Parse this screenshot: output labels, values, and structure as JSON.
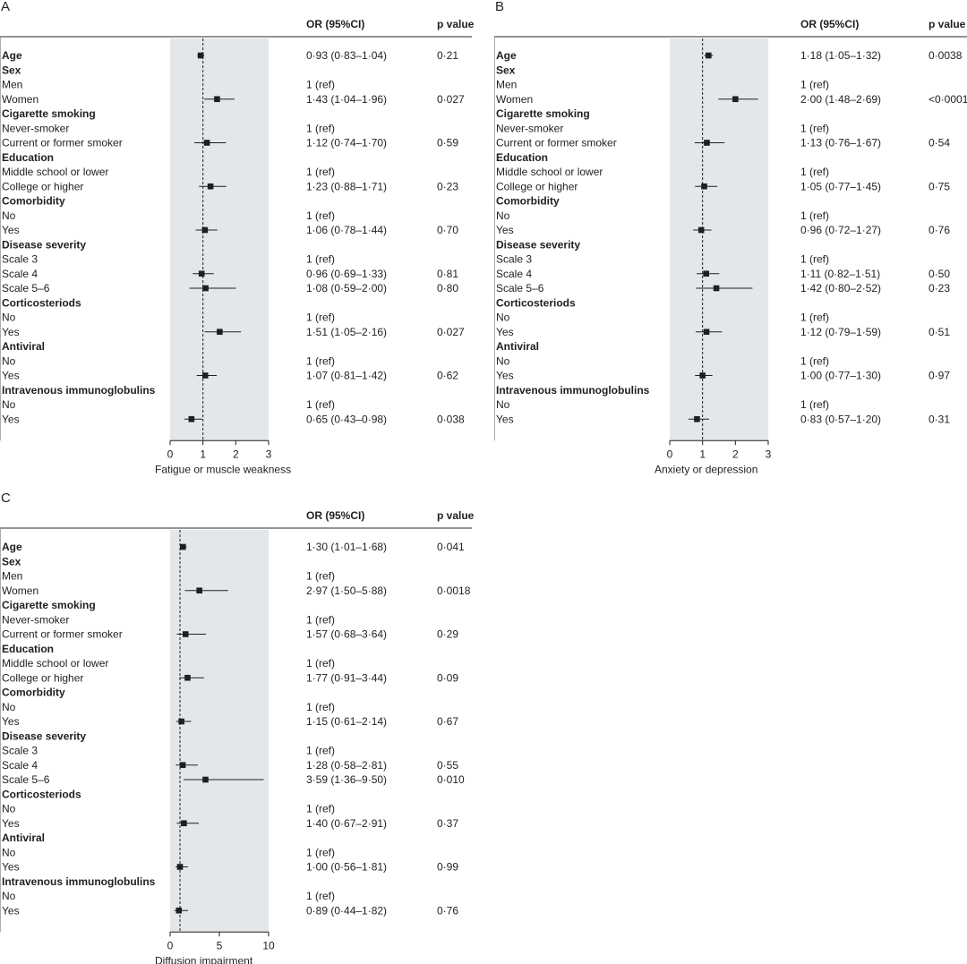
{
  "colors": {
    "shade": "#e4e7ea",
    "ink": "#1f1f1f",
    "line": "#555555"
  },
  "chart_data": [
    {
      "type": "forest",
      "panel": "A",
      "header_or": "OR (95%CI)",
      "header_p": "p value",
      "xlabel": "Fatigue or muscle weakness",
      "xlim": [
        0,
        3
      ],
      "xticks": [
        "0",
        "1",
        "2",
        "3"
      ],
      "reference": 1,
      "rows": [
        {
          "label": "Age",
          "bold": true,
          "or": 0.93,
          "lo": 0.83,
          "hi": 1.04,
          "ci": "0·93 (0·83–1·04)",
          "p": "0·21"
        },
        {
          "label": "Sex",
          "bold": true
        },
        {
          "label": "Men",
          "ci": "1 (ref)"
        },
        {
          "label": "Women",
          "or": 1.43,
          "lo": 1.04,
          "hi": 1.96,
          "ci": "1·43 (1·04–1·96)",
          "p": "0·027"
        },
        {
          "label": "Cigarette smoking",
          "bold": true
        },
        {
          "label": "Never-smoker",
          "ci": "1 (ref)"
        },
        {
          "label": "Current or former smoker",
          "or": 1.12,
          "lo": 0.74,
          "hi": 1.7,
          "ci": "1·12 (0·74–1·70)",
          "p": "0·59"
        },
        {
          "label": "Education",
          "bold": true
        },
        {
          "label": "Middle school or lower",
          "ci": "1 (ref)"
        },
        {
          "label": "College or higher",
          "or": 1.23,
          "lo": 0.88,
          "hi": 1.71,
          "ci": "1·23 (0·88–1·71)",
          "p": "0·23"
        },
        {
          "label": "Comorbidity",
          "bold": true
        },
        {
          "label": "No",
          "ci": "1 (ref)"
        },
        {
          "label": "Yes",
          "or": 1.06,
          "lo": 0.78,
          "hi": 1.44,
          "ci": "1·06 (0·78–1·44)",
          "p": "0·70"
        },
        {
          "label": "Disease severity",
          "bold": true
        },
        {
          "label": "Scale 3",
          "ci": "1 (ref)"
        },
        {
          "label": "Scale 4",
          "or": 0.96,
          "lo": 0.69,
          "hi": 1.33,
          "ci": "0·96 (0·69–1·33)",
          "p": "0·81"
        },
        {
          "label": "Scale 5–6",
          "or": 1.08,
          "lo": 0.59,
          "hi": 2.0,
          "ci": "1·08 (0·59–2·00)",
          "p": "0·80"
        },
        {
          "label": "Corticosteriods",
          "bold": true
        },
        {
          "label": "No",
          "ci": "1 (ref)"
        },
        {
          "label": "Yes",
          "or": 1.51,
          "lo": 1.05,
          "hi": 2.16,
          "ci": "1·51 (1·05–2·16)",
          "p": "0·027"
        },
        {
          "label": "Antiviral",
          "bold": true
        },
        {
          "label": "No",
          "ci": "1 (ref)"
        },
        {
          "label": "Yes",
          "or": 1.07,
          "lo": 0.81,
          "hi": 1.42,
          "ci": "1·07 (0·81–1·42)",
          "p": "0·62"
        },
        {
          "label": "Intravenous immunoglobulins",
          "bold": true
        },
        {
          "label": "No",
          "ci": "1 (ref)"
        },
        {
          "label": "Yes",
          "or": 0.65,
          "lo": 0.43,
          "hi": 0.98,
          "ci": "0·65 (0·43–0·98)",
          "p": "0·038"
        }
      ]
    },
    {
      "type": "forest",
      "panel": "B",
      "header_or": "OR (95%CI)",
      "header_p": "p value",
      "xlabel": "Anxiety or depression",
      "xlim": [
        0,
        3
      ],
      "xticks": [
        "0",
        "1",
        "2",
        "3"
      ],
      "reference": 1,
      "rows": [
        {
          "label": "Age",
          "bold": true,
          "or": 1.18,
          "lo": 1.05,
          "hi": 1.32,
          "ci": "1·18 (1·05–1·32)",
          "p": "0·0038"
        },
        {
          "label": "Sex",
          "bold": true
        },
        {
          "label": "Men",
          "ci": "1 (ref)"
        },
        {
          "label": "Women",
          "or": 2.0,
          "lo": 1.48,
          "hi": 2.69,
          "ci": "2·00 (1·48–2·69)",
          "p": "<0·0001"
        },
        {
          "label": "Cigarette smoking",
          "bold": true
        },
        {
          "label": "Never-smoker",
          "ci": "1 (ref)"
        },
        {
          "label": "Current or former smoker",
          "or": 1.13,
          "lo": 0.76,
          "hi": 1.67,
          "ci": "1·13 (0·76–1·67)",
          "p": "0·54"
        },
        {
          "label": "Education",
          "bold": true
        },
        {
          "label": "Middle school or lower",
          "ci": "1 (ref)"
        },
        {
          "label": "College or higher",
          "or": 1.05,
          "lo": 0.77,
          "hi": 1.45,
          "ci": "1·05 (0·77–1·45)",
          "p": "0·75"
        },
        {
          "label": "Comorbidity",
          "bold": true
        },
        {
          "label": "No",
          "ci": "1 (ref)"
        },
        {
          "label": "Yes",
          "or": 0.96,
          "lo": 0.72,
          "hi": 1.27,
          "ci": "0·96 (0·72–1·27)",
          "p": "0·76"
        },
        {
          "label": "Disease severity",
          "bold": true
        },
        {
          "label": "Scale 3",
          "ci": "1 (ref)"
        },
        {
          "label": "Scale 4",
          "or": 1.11,
          "lo": 0.82,
          "hi": 1.51,
          "ci": "1·11 (0·82–1·51)",
          "p": "0·50"
        },
        {
          "label": "Scale 5–6",
          "or": 1.42,
          "lo": 0.8,
          "hi": 2.52,
          "ci": "1·42 (0·80–2·52)",
          "p": "0·23"
        },
        {
          "label": "Corticosteriods",
          "bold": true
        },
        {
          "label": "No",
          "ci": "1 (ref)"
        },
        {
          "label": "Yes",
          "or": 1.12,
          "lo": 0.79,
          "hi": 1.59,
          "ci": "1·12 (0·79–1·59)",
          "p": "0·51"
        },
        {
          "label": "Antiviral",
          "bold": true
        },
        {
          "label": "No",
          "ci": "1 (ref)"
        },
        {
          "label": "Yes",
          "or": 1.0,
          "lo": 0.77,
          "hi": 1.3,
          "ci": "1·00 (0·77–1·30)",
          "p": "0·97"
        },
        {
          "label": "Intravenous immunoglobulins",
          "bold": true
        },
        {
          "label": "No",
          "ci": "1 (ref)"
        },
        {
          "label": "Yes",
          "or": 0.83,
          "lo": 0.57,
          "hi": 1.2,
          "ci": "0·83 (0·57–1·20)",
          "p": "0·31"
        }
      ]
    },
    {
      "type": "forest",
      "panel": "C",
      "header_or": "OR (95%CI)",
      "header_p": "p value",
      "xlabel": "Diffusion impairment",
      "xlim": [
        0,
        10
      ],
      "xticks": [
        "0",
        "5",
        "10"
      ],
      "reference": 1,
      "rows": [
        {
          "label": "Age",
          "bold": true,
          "or": 1.3,
          "lo": 1.01,
          "hi": 1.68,
          "ci": "1·30 (1·01–1·68)",
          "p": "0·041"
        },
        {
          "label": "Sex",
          "bold": true
        },
        {
          "label": "Men",
          "ci": "1 (ref)"
        },
        {
          "label": "Women",
          "or": 2.97,
          "lo": 1.5,
          "hi": 5.88,
          "ci": "2·97 (1·50–5·88)",
          "p": "0·0018"
        },
        {
          "label": "Cigarette smoking",
          "bold": true
        },
        {
          "label": "Never-smoker",
          "ci": "1 (ref)"
        },
        {
          "label": "Current or former smoker",
          "or": 1.57,
          "lo": 0.68,
          "hi": 3.64,
          "ci": "1·57 (0·68–3·64)",
          "p": "0·29"
        },
        {
          "label": "Education",
          "bold": true
        },
        {
          "label": "Middle school or lower",
          "ci": "1 (ref)"
        },
        {
          "label": "College or higher",
          "or": 1.77,
          "lo": 0.91,
          "hi": 3.44,
          "ci": "1·77 (0·91–3·44)",
          "p": "0·09"
        },
        {
          "label": "Comorbidity",
          "bold": true
        },
        {
          "label": "No",
          "ci": "1 (ref)"
        },
        {
          "label": "Yes",
          "or": 1.15,
          "lo": 0.61,
          "hi": 2.14,
          "ci": "1·15 (0·61–2·14)",
          "p": "0·67"
        },
        {
          "label": "Disease severity",
          "bold": true
        },
        {
          "label": "Scale 3",
          "ci": "1 (ref)"
        },
        {
          "label": "Scale 4",
          "or": 1.28,
          "lo": 0.58,
          "hi": 2.81,
          "ci": "1·28 (0·58–2·81)",
          "p": "0·55"
        },
        {
          "label": "Scale 5–6",
          "or": 3.59,
          "lo": 1.36,
          "hi": 9.5,
          "ci": "3·59 (1·36–9·50)",
          "p": "0·010"
        },
        {
          "label": "Corticosteriods",
          "bold": true
        },
        {
          "label": "No",
          "ci": "1 (ref)"
        },
        {
          "label": "Yes",
          "or": 1.4,
          "lo": 0.67,
          "hi": 2.91,
          "ci": "1·40 (0·67–2·91)",
          "p": "0·37"
        },
        {
          "label": "Antiviral",
          "bold": true
        },
        {
          "label": "No",
          "ci": "1 (ref)"
        },
        {
          "label": "Yes",
          "or": 1.0,
          "lo": 0.56,
          "hi": 1.81,
          "ci": "1·00 (0·56–1·81)",
          "p": "0·99"
        },
        {
          "label": "Intravenous immunoglobulins",
          "bold": true
        },
        {
          "label": "No",
          "ci": "1 (ref)"
        },
        {
          "label": "Yes",
          "or": 0.89,
          "lo": 0.44,
          "hi": 1.82,
          "ci": "0·89 (0·44–1·82)",
          "p": "0·76"
        }
      ]
    }
  ]
}
